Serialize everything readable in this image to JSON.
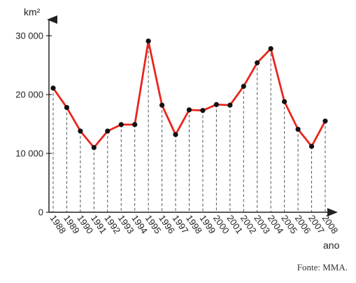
{
  "chart_data": {
    "type": "line",
    "x": [
      "1988",
      "1989",
      "1990",
      "1991",
      "1992",
      "1993",
      "1994",
      "1995",
      "1996",
      "1997",
      "1998",
      "1999",
      "2000",
      "2001",
      "2002",
      "2003",
      "2004",
      "2005",
      "2006",
      "2007",
      "2008"
    ],
    "series": [
      {
        "values": [
          21100,
          17800,
          13800,
          11000,
          13800,
          14900,
          14900,
          29100,
          18200,
          13200,
          17400,
          17300,
          18300,
          18200,
          21400,
          25400,
          27800,
          18800,
          14100,
          11200,
          15500
        ]
      }
    ],
    "yticks": [
      0,
      10000,
      20000,
      30000
    ],
    "ytick_labels": [
      "0",
      "10 000",
      "20 000",
      "30 000"
    ],
    "ylim": [
      0,
      31500
    ],
    "ylabel": "km²",
    "xlabel": "ano",
    "line_color": "#e8261e",
    "point_color": "#111111",
    "grid": "vertical dashed drop lines",
    "source": "Fonte: MMA."
  }
}
